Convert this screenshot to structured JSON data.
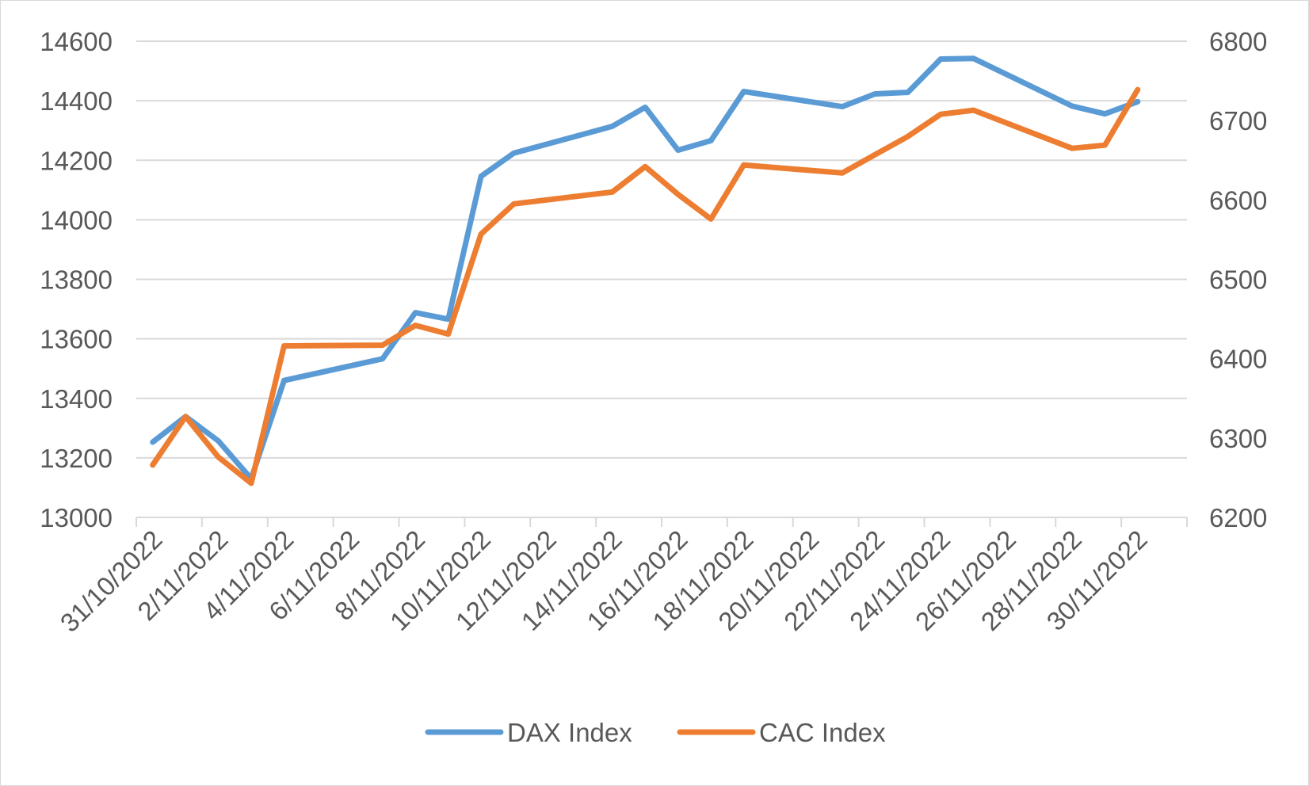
{
  "chart_data": {
    "type": "line",
    "title": "",
    "xlabel": "",
    "ylabel": "",
    "y_left_lim": [
      13000,
      14600
    ],
    "y_left_ticks": [
      "13000",
      "13200",
      "13400",
      "13600",
      "13800",
      "14000",
      "14200",
      "14400",
      "14600"
    ],
    "y_right_lim": [
      6200,
      6800
    ],
    "y_right_ticks": [
      "6200",
      "6300",
      "6400",
      "6500",
      "6600",
      "6700",
      "6800"
    ],
    "x_ticks": [
      "31/10/2022",
      "2/11/2022",
      "4/11/2022",
      "6/11/2022",
      "8/11/2022",
      "10/11/2022",
      "12/11/2022",
      "14/11/2022",
      "16/11/2022",
      "18/11/2022",
      "20/11/2022",
      "22/11/2022",
      "24/11/2022",
      "26/11/2022",
      "28/11/2022",
      "30/11/2022"
    ],
    "grid": "horizontal",
    "legend": "bottom",
    "series": [
      {
        "name": "DAX Index",
        "axis": "left",
        "color": "#5B9BD5",
        "points": [
          [
            "31/10/2022",
            13253
          ],
          [
            "1/11/2022",
            13339
          ],
          [
            "2/11/2022",
            13257
          ],
          [
            "3/11/2022",
            13130
          ],
          [
            "4/11/2022",
            13460
          ],
          [
            "7/11/2022",
            13533
          ],
          [
            "8/11/2022",
            13688
          ],
          [
            "9/11/2022",
            13666
          ],
          [
            "10/11/2022",
            14146
          ],
          [
            "11/11/2022",
            14224
          ],
          [
            "14/11/2022",
            14314
          ],
          [
            "15/11/2022",
            14378
          ],
          [
            "16/11/2022",
            14234
          ],
          [
            "17/11/2022",
            14266
          ],
          [
            "18/11/2022",
            14431
          ],
          [
            "21/11/2022",
            14380
          ],
          [
            "22/11/2022",
            14423
          ],
          [
            "23/11/2022",
            14428
          ],
          [
            "24/11/2022",
            14540
          ],
          [
            "25/11/2022",
            14542
          ],
          [
            "28/11/2022",
            14382
          ],
          [
            "29/11/2022",
            14356
          ],
          [
            "30/11/2022",
            14397
          ]
        ]
      },
      {
        "name": "CAC Index",
        "axis": "right",
        "color": "#ED7D31",
        "points": [
          [
            "31/10/2022",
            6266
          ],
          [
            "1/11/2022",
            6327
          ],
          [
            "2/11/2022",
            6276
          ],
          [
            "3/11/2022",
            6243
          ],
          [
            "4/11/2022",
            6416
          ],
          [
            "7/11/2022",
            6417
          ],
          [
            "8/11/2022",
            6442
          ],
          [
            "9/11/2022",
            6431
          ],
          [
            "10/11/2022",
            6557
          ],
          [
            "11/11/2022",
            6595
          ],
          [
            "14/11/2022",
            6610
          ],
          [
            "15/11/2022",
            6642
          ],
          [
            "16/11/2022",
            6607
          ],
          [
            "17/11/2022",
            6576
          ],
          [
            "18/11/2022",
            6644
          ],
          [
            "21/11/2022",
            6634
          ],
          [
            "22/11/2022",
            6657
          ],
          [
            "23/11/2022",
            6680
          ],
          [
            "24/11/2022",
            6708
          ],
          [
            "25/11/2022",
            6713
          ],
          [
            "28/11/2022",
            6665
          ],
          [
            "29/11/2022",
            6669
          ],
          [
            "30/11/2022",
            6739
          ]
        ]
      }
    ]
  }
}
